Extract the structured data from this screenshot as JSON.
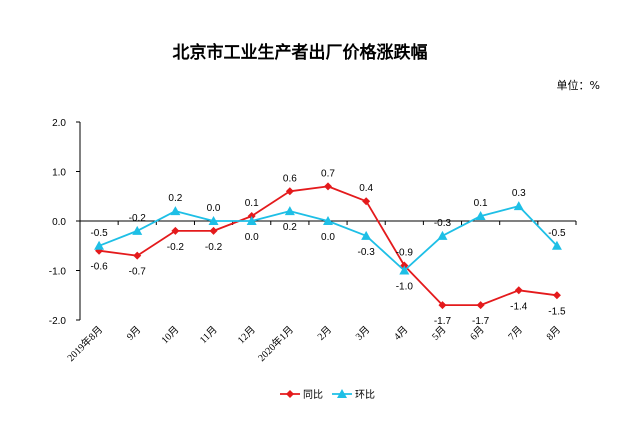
{
  "chart_data": {
    "type": "line",
    "title": "北京市工业生产者出厂价格涨跌幅",
    "unit_label": "单位：%",
    "categories": [
      "2019年8月",
      "9月",
      "10月",
      "11月",
      "12月",
      "2020年1月",
      "2月",
      "3月",
      "4月",
      "5月",
      "6月",
      "7月",
      "8月"
    ],
    "ylim": [
      -2.0,
      2.0
    ],
    "yticks": [
      "2.0",
      "1.0",
      "0.0",
      "-1.0",
      "-2.0"
    ],
    "ytick_values": [
      2,
      1,
      0,
      -1,
      -2
    ],
    "grid": false,
    "legend_position": "bottom",
    "series": [
      {
        "name": "同比",
        "color": "#e41a1c",
        "marker": "diamond",
        "values": [
          -0.6,
          -0.7,
          -0.2,
          -0.2,
          0.1,
          0.6,
          0.7,
          0.4,
          -0.9,
          -1.7,
          -1.7,
          -1.4,
          -1.5
        ],
        "labels": [
          "-0.6",
          "-0.7",
          "-0.2",
          "-0.2",
          "0.1",
          "0.6",
          "0.7",
          "0.4",
          "-0.9",
          "-1.7",
          "-1.7",
          "-1.4",
          "-1.5"
        ]
      },
      {
        "name": "环比",
        "color": "#1ebfe6",
        "marker": "triangle",
        "values": [
          -0.5,
          -0.2,
          0.2,
          0.0,
          0.0,
          0.2,
          0.0,
          -0.3,
          -1.0,
          -0.3,
          0.1,
          0.3,
          -0.5
        ],
        "labels": [
          "-0.5",
          "-0.2",
          "0.2",
          "0.0",
          "0.0",
          "0.2",
          "0.0",
          "-0.3",
          "-1.0",
          "-0.3",
          "0.1",
          "0.3",
          "-0.5"
        ]
      }
    ]
  }
}
